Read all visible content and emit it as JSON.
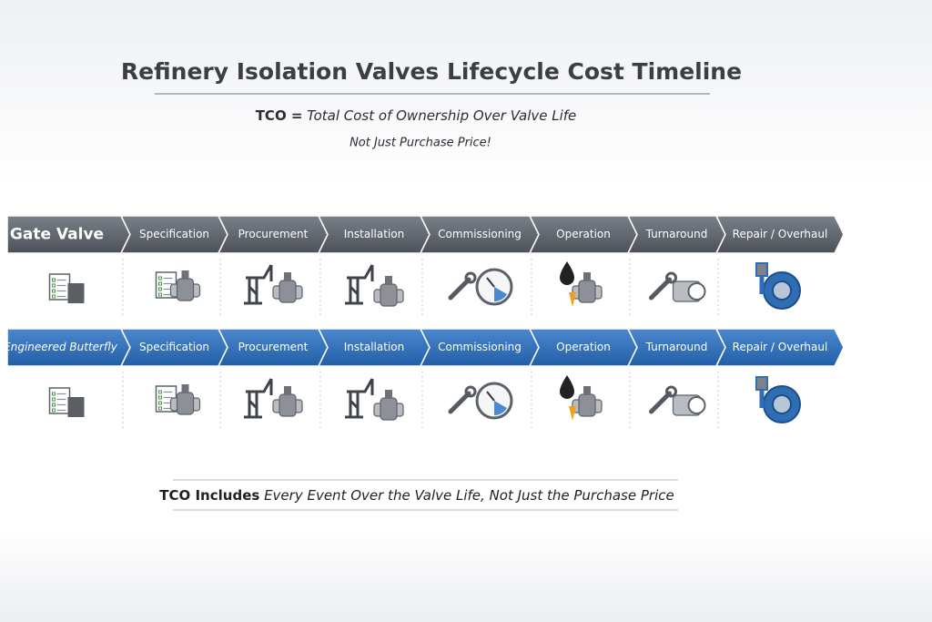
{
  "header": {
    "title": "Refinery Isolation Valves Lifecycle Cost Timeline",
    "subtitle": {
      "bold": "TCO =",
      "italic": "Total Cost of Ownership Over Valve Life"
    },
    "tagline": "Not Just Purchase Price!"
  },
  "rows": [
    {
      "label": "Gate Valve",
      "stages": [
        "Specification",
        "Procurement",
        "Installation",
        "Commissioning",
        "Operation",
        "Turnaround",
        "Repair / Overhaul"
      ]
    },
    {
      "label": "Engineered Butterfly",
      "stages": [
        "Specification",
        "Procurement",
        "Installation",
        "Commissioning",
        "Operation",
        "Turnaround",
        "Repair / Overhaul"
      ]
    }
  ],
  "footer": {
    "bold": "TCO Includes",
    "italic": "Every Event Over the Valve Life, Not Just the Purchase Price"
  }
}
